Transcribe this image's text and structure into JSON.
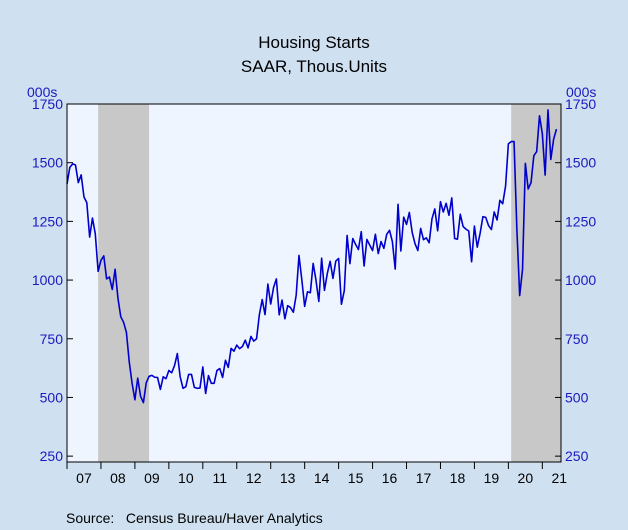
{
  "chart_data": {
    "type": "line",
    "title": "Housing Starts",
    "subtitle": "SAAR, Thous.Units",
    "ylabel_left": "000s",
    "ylabel_right": "000s",
    "source": "Source:   Census Bureau/Haver Analytics",
    "ylim": [
      225,
      1750
    ],
    "yticks": [
      250,
      500,
      750,
      1000,
      1250,
      1500,
      1750
    ],
    "x_start": 2007.0,
    "x_end": 2021.55,
    "year_labels": [
      "07",
      "08",
      "09",
      "10",
      "11",
      "12",
      "13",
      "14",
      "15",
      "16",
      "17",
      "18",
      "19",
      "20",
      "21"
    ],
    "recessions": [
      [
        2007.917,
        2009.417
      ],
      [
        2020.083,
        2021.55
      ]
    ],
    "colors": {
      "background": "#cfe0f0",
      "plot": "#eef5ff",
      "line": "#0000cc",
      "recession": "#c8c8c8",
      "axis_text": "#1a1ac0"
    },
    "series": [
      {
        "x": [
          2007.0,
          2007.083,
          2007.167,
          2007.25,
          2007.333,
          2007.417,
          2007.5,
          2007.583,
          2007.667,
          2007.75,
          2007.833,
          2007.917,
          2008.0,
          2008.083,
          2008.167,
          2008.25,
          2008.333,
          2008.417,
          2008.5,
          2008.583,
          2008.667,
          2008.75,
          2008.833,
          2008.917,
          2009.0,
          2009.083,
          2009.167,
          2009.25,
          2009.333,
          2009.417,
          2009.5,
          2009.583,
          2009.667,
          2009.75,
          2009.833,
          2009.917,
          2010.0,
          2010.083,
          2010.167,
          2010.25,
          2010.333,
          2010.417,
          2010.5,
          2010.583,
          2010.667,
          2010.75,
          2010.833,
          2010.917,
          2011.0,
          2011.083,
          2011.167,
          2011.25,
          2011.333,
          2011.417,
          2011.5,
          2011.583,
          2011.667,
          2011.75,
          2011.833,
          2011.917,
          2012.0,
          2012.083,
          2012.167,
          2012.25,
          2012.333,
          2012.417,
          2012.5,
          2012.583,
          2012.667,
          2012.75,
          2012.833,
          2012.917,
          2013.0,
          2013.083,
          2013.167,
          2013.25,
          2013.333,
          2013.417,
          2013.5,
          2013.583,
          2013.667,
          2013.75,
          2013.833,
          2013.917,
          2014.0,
          2014.083,
          2014.167,
          2014.25,
          2014.333,
          2014.417,
          2014.5,
          2014.583,
          2014.667,
          2014.75,
          2014.833,
          2014.917,
          2015.0,
          2015.083,
          2015.167,
          2015.25,
          2015.333,
          2015.417,
          2015.5,
          2015.583,
          2015.667,
          2015.75,
          2015.833,
          2015.917,
          2016.0,
          2016.083,
          2016.167,
          2016.25,
          2016.333,
          2016.417,
          2016.5,
          2016.583,
          2016.667,
          2016.75,
          2016.833,
          2016.917,
          2017.0,
          2017.083,
          2017.167,
          2017.25,
          2017.333,
          2017.417,
          2017.5,
          2017.583,
          2017.667,
          2017.75,
          2017.833,
          2017.917,
          2018.0,
          2018.083,
          2018.167,
          2018.25,
          2018.333,
          2018.417,
          2018.5,
          2018.583,
          2018.667,
          2018.75,
          2018.833,
          2018.917,
          2019.0,
          2019.083,
          2019.167,
          2019.25,
          2019.333,
          2019.417,
          2019.5,
          2019.583,
          2019.667,
          2019.75,
          2019.833,
          2019.917,
          2020.0,
          2020.083,
          2020.167,
          2020.25,
          2020.333,
          2020.417,
          2020.5,
          2020.583,
          2020.667,
          2020.75,
          2020.833,
          2020.917,
          2021.0,
          2021.083,
          2021.167,
          2021.25,
          2021.333,
          2021.417
        ],
        "values": [
          1409,
          1480,
          1495,
          1490,
          1415,
          1448,
          1354,
          1330,
          1183,
          1264,
          1197,
          1037,
          1084,
          1103,
          1005,
          1013,
          960,
          1046,
          923,
          844,
          820,
          777,
          652,
          560,
          490,
          582,
          505,
          478,
          562,
          590,
          594,
          586,
          585,
          534,
          588,
          580,
          615,
          605,
          636,
          687,
          588,
          539,
          546,
          598,
          598,
          543,
          539,
          540,
          630,
          517,
          593,
          560,
          560,
          615,
          623,
          585,
          658,
          628,
          709,
          697,
          723,
          708,
          717,
          744,
          711,
          760,
          740,
          750,
          854,
          917,
          853,
          983,
          898,
          968,
          1005,
          852,
          915,
          835,
          891,
          883,
          863,
          936,
          1105,
          1000,
          888,
          950,
          946,
          1071,
          1000,
          909,
          1093,
          956,
          1028,
          1080,
          1007,
          1081,
          1092,
          897,
          955,
          1190,
          1070,
          1177,
          1152,
          1130,
          1206,
          1060,
          1173,
          1149,
          1126,
          1195,
          1113,
          1164,
          1135,
          1195,
          1212,
          1164,
          1047,
          1323,
          1124,
          1268,
          1237,
          1288,
          1203,
          1155,
          1126,
          1220,
          1172,
          1180,
          1159,
          1261,
          1303,
          1210,
          1334,
          1290,
          1327,
          1276,
          1350,
          1177,
          1174,
          1280,
          1228,
          1217,
          1209,
          1078,
          1230,
          1140,
          1199,
          1270,
          1267,
          1232,
          1215,
          1290,
          1256,
          1340,
          1325,
          1400,
          1580,
          1590,
          1590,
          1217,
          934,
          1046,
          1497,
          1388,
          1415,
          1530,
          1547,
          1700,
          1623,
          1447,
          1725,
          1514,
          1600,
          1643
        ]
      }
    ]
  }
}
